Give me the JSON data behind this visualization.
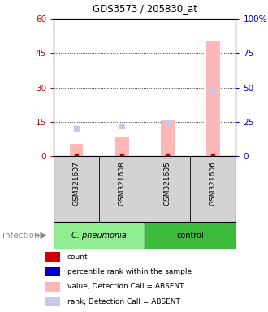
{
  "title": "GDS3573 / 205830_at",
  "samples": [
    "GSM321607",
    "GSM321608",
    "GSM321605",
    "GSM321606"
  ],
  "pink_bar_values": [
    5.5,
    8.5,
    15.5,
    50.0
  ],
  "blue_rank_values": [
    20.0,
    22.0,
    24.0,
    48.0
  ],
  "red_count_values": [
    0.4,
    0.4,
    0.4,
    0.4
  ],
  "ylim_left": [
    0,
    60
  ],
  "ylim_right": [
    0,
    100
  ],
  "yticks_left": [
    0,
    15,
    30,
    45,
    60
  ],
  "ytick_labels_left": [
    "0",
    "15",
    "30",
    "45",
    "60"
  ],
  "ytick_labels_right": [
    "0",
    "25",
    "50",
    "75",
    "100%"
  ],
  "left_axis_color": "#cc0000",
  "right_axis_color": "#0000cc",
  "grid_lines": [
    15,
    30,
    45
  ],
  "group1_label": "C. pneumonia",
  "group2_label": "control",
  "group1_color": "#90EE90",
  "group2_color": "#3dbb3d",
  "sample_bg_color": "#d3d3d3",
  "infection_label": "infection",
  "legend_colors": [
    "#cc0000",
    "#0000cc",
    "#ffb6b6",
    "#c8c8e8"
  ],
  "legend_labels": [
    "count",
    "percentile rank within the sample",
    "value, Detection Call = ABSENT",
    "rank, Detection Call = ABSENT"
  ]
}
